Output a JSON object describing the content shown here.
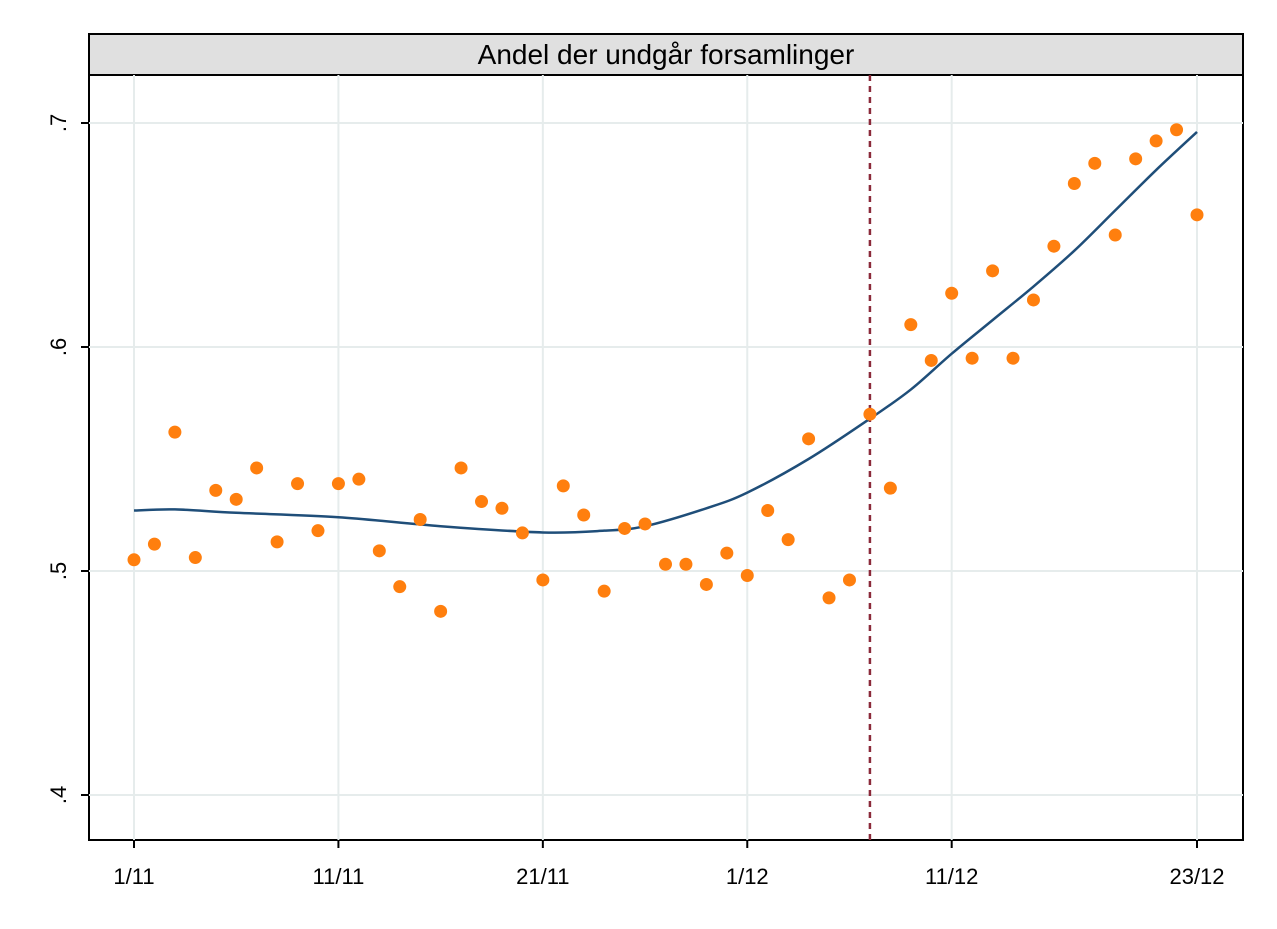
{
  "chart_data": {
    "type": "scatter",
    "title": "Andel der undgår forsamlinger",
    "xlabel": "",
    "ylabel": "",
    "x_start_label": "1/11",
    "x_range_days": [
      0,
      52
    ],
    "ylim": [
      0.4,
      0.7
    ],
    "y_ticks": [
      {
        "value": 0.4,
        "label": ".4"
      },
      {
        "value": 0.5,
        "label": ".5"
      },
      {
        "value": 0.6,
        "label": ".6"
      },
      {
        "value": 0.7,
        "label": ".7"
      }
    ],
    "x_ticks": [
      {
        "label": "1/11",
        "index": 0
      },
      {
        "label": "11/11",
        "index": 10
      },
      {
        "label": "21/11",
        "index": 20
      },
      {
        "label": "1/12",
        "index": 30
      },
      {
        "label": "11/12",
        "index": 40
      },
      {
        "label": "23/12",
        "index": 52
      }
    ],
    "grid": true,
    "reference_line": {
      "index": 36,
      "style": "dashed",
      "color": "#8b2a3a"
    },
    "series": [
      {
        "type": "scatter",
        "color": "#ff7f0e",
        "points": [
          {
            "x": "1/11",
            "y": 0.505
          },
          {
            "x": "2/11",
            "y": 0.512
          },
          {
            "x": "3/11",
            "y": 0.562
          },
          {
            "x": "4/11",
            "y": 0.506
          },
          {
            "x": "5/11",
            "y": 0.536
          },
          {
            "x": "6/11",
            "y": 0.532
          },
          {
            "x": "7/11",
            "y": 0.546
          },
          {
            "x": "8/11",
            "y": 0.513
          },
          {
            "x": "9/11",
            "y": 0.539
          },
          {
            "x": "10/11",
            "y": 0.518
          },
          {
            "x": "11/11",
            "y": 0.539
          },
          {
            "x": "12/11",
            "y": 0.541
          },
          {
            "x": "13/11",
            "y": 0.509
          },
          {
            "x": "14/11",
            "y": 0.493
          },
          {
            "x": "15/11",
            "y": 0.523
          },
          {
            "x": "16/11",
            "y": 0.482
          },
          {
            "x": "17/11",
            "y": 0.546
          },
          {
            "x": "18/11",
            "y": 0.531
          },
          {
            "x": "19/11",
            "y": 0.528
          },
          {
            "x": "20/11",
            "y": 0.517
          },
          {
            "x": "21/11",
            "y": 0.496
          },
          {
            "x": "22/11",
            "y": 0.538
          },
          {
            "x": "23/11",
            "y": 0.525
          },
          {
            "x": "24/11",
            "y": 0.491
          },
          {
            "x": "25/11",
            "y": 0.519
          },
          {
            "x": "26/11",
            "y": 0.521
          },
          {
            "x": "27/11",
            "y": 0.503
          },
          {
            "x": "28/11",
            "y": 0.503
          },
          {
            "x": "29/11",
            "y": 0.494
          },
          {
            "x": "30/11",
            "y": 0.508
          },
          {
            "x": "1/12",
            "y": 0.498
          },
          {
            "x": "2/12",
            "y": 0.527
          },
          {
            "x": "3/12",
            "y": 0.514
          },
          {
            "x": "4/12",
            "y": 0.559
          },
          {
            "x": "5/12",
            "y": 0.488
          },
          {
            "x": "6/12",
            "y": 0.496
          },
          {
            "x": "7/12",
            "y": 0.57
          },
          {
            "x": "8/12",
            "y": 0.537
          },
          {
            "x": "9/12",
            "y": 0.61
          },
          {
            "x": "10/12",
            "y": 0.594
          },
          {
            "x": "11/12",
            "y": 0.624
          },
          {
            "x": "12/12",
            "y": 0.595
          },
          {
            "x": "13/12",
            "y": 0.634
          },
          {
            "x": "14/12",
            "y": 0.595
          },
          {
            "x": "15/12",
            "y": 0.621
          },
          {
            "x": "16/12",
            "y": 0.645
          },
          {
            "x": "17/12",
            "y": 0.673
          },
          {
            "x": "18/12",
            "y": 0.682
          },
          {
            "x": "19/12",
            "y": 0.65
          },
          {
            "x": "20/12",
            "y": 0.684
          },
          {
            "x": "21/12",
            "y": 0.692
          },
          {
            "x": "22/12",
            "y": 0.697
          },
          {
            "x": "23/12",
            "y": 0.659
          }
        ]
      },
      {
        "type": "line",
        "color": "#1f4e79",
        "points": [
          {
            "x": "1/11",
            "y": 0.527
          },
          {
            "x": "3/11",
            "y": 0.5275
          },
          {
            "x": "6/11",
            "y": 0.526
          },
          {
            "x": "11/11",
            "y": 0.524
          },
          {
            "x": "16/11",
            "y": 0.52
          },
          {
            "x": "21/11",
            "y": 0.5172
          },
          {
            "x": "24/11",
            "y": 0.518
          },
          {
            "x": "26/11",
            "y": 0.52
          },
          {
            "x": "29/11",
            "y": 0.528
          },
          {
            "x": "1/12",
            "y": 0.535
          },
          {
            "x": "4/12",
            "y": 0.55
          },
          {
            "x": "7/12",
            "y": 0.568
          },
          {
            "x": "9/12",
            "y": 0.581
          },
          {
            "x": "11/12",
            "y": 0.597
          },
          {
            "x": "13/12",
            "y": 0.612
          },
          {
            "x": "15/12",
            "y": 0.627
          },
          {
            "x": "17/12",
            "y": 0.643
          },
          {
            "x": "19/12",
            "y": 0.661
          },
          {
            "x": "21/12",
            "y": 0.679
          },
          {
            "x": "23/12",
            "y": 0.696
          }
        ]
      }
    ]
  }
}
